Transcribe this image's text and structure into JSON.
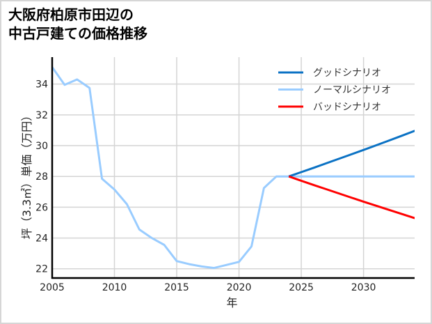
{
  "title": "大阪府柏原市田辺の\n中古戸建ての価格推移",
  "chart_data": {
    "type": "line",
    "title": "大阪府柏原市田辺の中古戸建ての価格推移",
    "xlabel": "年",
    "ylabel": "坪（3.3㎡）単価（万円）",
    "xlim": [
      2005,
      2034.1
    ],
    "ylim": [
      21.4,
      35.75
    ],
    "xticks": [
      2005,
      2010,
      2015,
      2020,
      2025,
      2030
    ],
    "yticks": [
      22,
      24,
      26,
      28,
      30,
      32,
      34
    ],
    "grid": true,
    "legend_position": "upper right",
    "series": [
      {
        "name": "グッドシナリオ",
        "color": "#0b72c4",
        "x": [
          2024,
          2025,
          2026,
          2027,
          2028,
          2029,
          2030,
          2031,
          2032,
          2033,
          2034,
          2035
        ],
        "y": [
          28.0,
          28.28,
          28.56,
          28.85,
          29.14,
          29.43,
          29.72,
          30.02,
          30.32,
          30.62,
          30.93,
          31.24
        ]
      },
      {
        "name": "ノーマルシナリオ",
        "color": "#99ccff",
        "x": [
          2005,
          2006,
          2007,
          2008,
          2009,
          2010,
          2011,
          2012,
          2013,
          2014,
          2015,
          2016,
          2017,
          2018,
          2019,
          2020,
          2021,
          2022,
          2023,
          2024,
          2025,
          2026,
          2027,
          2028,
          2029,
          2030,
          2031,
          2032,
          2033,
          2034,
          2035
        ],
        "y": [
          35.1,
          33.95,
          34.3,
          33.75,
          27.85,
          27.15,
          26.2,
          24.55,
          24.0,
          23.55,
          22.5,
          22.3,
          22.15,
          22.05,
          22.25,
          22.45,
          23.45,
          27.25,
          28.0,
          28.0,
          28.0,
          28.0,
          28.0,
          28.0,
          28.0,
          28.0,
          28.0,
          28.0,
          28.0,
          28.0,
          28.0
        ]
      },
      {
        "name": "バッドシナリオ",
        "color": "#ff0000",
        "x": [
          2024,
          2025,
          2026,
          2027,
          2028,
          2029,
          2030,
          2031,
          2032,
          2033,
          2034,
          2035
        ],
        "y": [
          28.0,
          27.72,
          27.44,
          27.17,
          26.9,
          26.63,
          26.36,
          26.1,
          25.84,
          25.58,
          25.32,
          25.07
        ]
      }
    ]
  }
}
